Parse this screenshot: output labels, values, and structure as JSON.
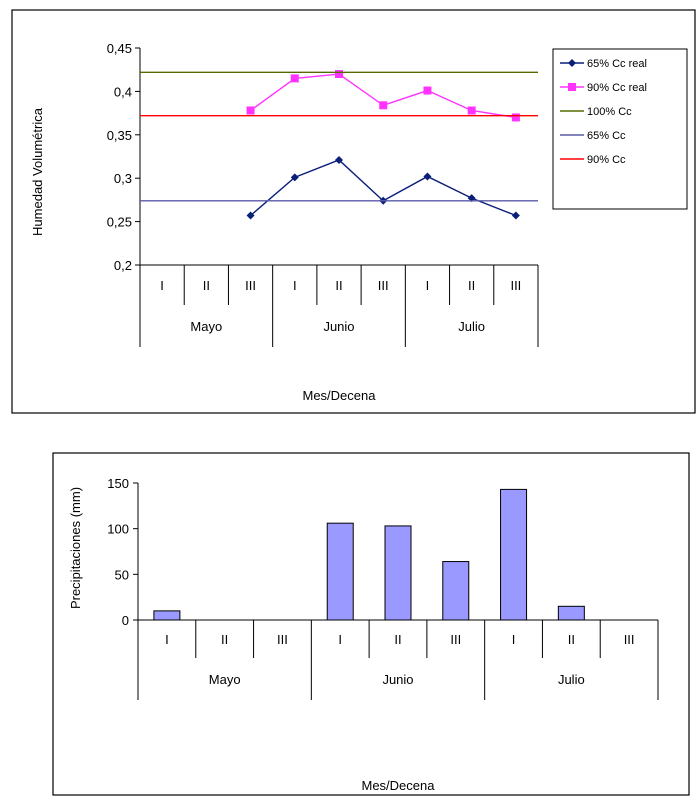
{
  "chart_data": [
    {
      "type": "line",
      "ylabel": "Humedad Volumétrica",
      "xlabel": "Mes/Decena",
      "ylim": [
        0.2,
        0.45
      ],
      "yticks": [
        "0,45",
        "0,4",
        "0,35",
        "0,3",
        "0,25",
        "0,2"
      ],
      "ytick_values": [
        0.45,
        0.4,
        0.35,
        0.3,
        0.25,
        0.2
      ],
      "categories": [
        "I",
        "II",
        "III",
        "I",
        "II",
        "III",
        "I",
        "II",
        "III"
      ],
      "groups": [
        {
          "label": "Mayo",
          "count": 3
        },
        {
          "label": "Junio",
          "count": 3
        },
        {
          "label": "Julio",
          "count": 3
        }
      ],
      "grid": false,
      "legend_position": "right",
      "series": [
        {
          "name": "65% Cc real",
          "color": "#0a1f7a",
          "marker": "diamond",
          "values": [
            null,
            null,
            0.257,
            0.301,
            0.321,
            0.274,
            0.302,
            0.277,
            0.257
          ]
        },
        {
          "name": "90% Cc real",
          "color": "#ff33ff",
          "marker": "square",
          "values": [
            null,
            null,
            0.378,
            0.415,
            0.42,
            0.384,
            0.401,
            0.378,
            0.37
          ]
        },
        {
          "name": "100% Cc",
          "color": "#556b00",
          "marker": "none",
          "values": [
            0.422,
            0.422,
            0.422,
            0.422,
            0.422,
            0.422,
            0.422,
            0.422,
            0.422
          ]
        },
        {
          "name": "65% Cc",
          "color": "#5a5aa8",
          "marker": "none",
          "values": [
            0.274,
            0.274,
            0.274,
            0.274,
            0.274,
            0.274,
            0.274,
            0.274,
            0.274
          ]
        },
        {
          "name": "90% Cc",
          "color": "#ff0000",
          "marker": "none",
          "values": [
            0.372,
            0.372,
            0.372,
            0.372,
            0.372,
            0.372,
            0.372,
            0.372,
            0.372
          ]
        }
      ]
    },
    {
      "type": "bar",
      "ylabel": "Precipitaciones (mm)",
      "xlabel": "Mes/Decena",
      "ylim": [
        0,
        150
      ],
      "yticks": [
        "150",
        "100",
        "50",
        "0"
      ],
      "ytick_values": [
        150,
        100,
        50,
        0
      ],
      "categories": [
        "I",
        "II",
        "III",
        "I",
        "II",
        "III",
        "I",
        "II",
        "III"
      ],
      "groups": [
        {
          "label": "Mayo",
          "count": 3
        },
        {
          "label": "Junio",
          "count": 3
        },
        {
          "label": "Julio",
          "count": 3
        }
      ],
      "grid": false,
      "bar_color": "#9999ff",
      "values": [
        10,
        0,
        0,
        106,
        103,
        64,
        143,
        15,
        0
      ]
    }
  ]
}
